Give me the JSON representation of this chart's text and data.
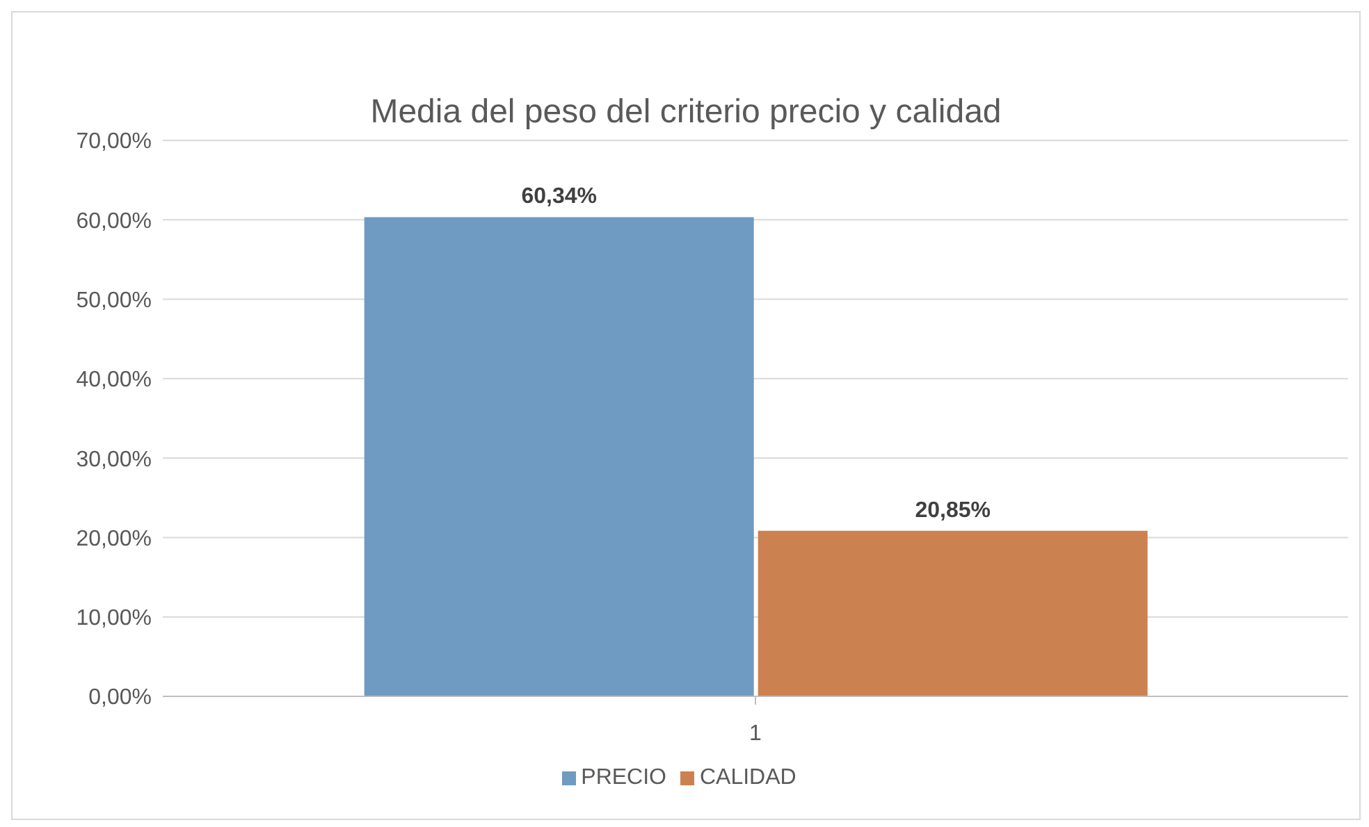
{
  "chart_data": {
    "type": "bar",
    "title": "Media del peso del criterio precio y calidad",
    "categories": [
      "1"
    ],
    "series": [
      {
        "name": "PRECIO",
        "color": "#6f9ac1",
        "values": [
          60.34
        ],
        "value_labels": [
          "60,34%"
        ]
      },
      {
        "name": "CALIDAD",
        "color": "#cc8150",
        "values": [
          20.85
        ],
        "value_labels": [
          "20,85%"
        ]
      }
    ],
    "ylim": [
      0,
      70
    ],
    "yticks": [
      {
        "value": 0,
        "label": "0,00%"
      },
      {
        "value": 10,
        "label": "10,00%"
      },
      {
        "value": 20,
        "label": "20,00%"
      },
      {
        "value": 30,
        "label": "30,00%"
      },
      {
        "value": 40,
        "label": "40,00%"
      },
      {
        "value": 50,
        "label": "50,00%"
      },
      {
        "value": 60,
        "label": "60,00%"
      },
      {
        "value": 70,
        "label": "70,00%"
      }
    ],
    "grid": "y",
    "legend": "bottom"
  }
}
